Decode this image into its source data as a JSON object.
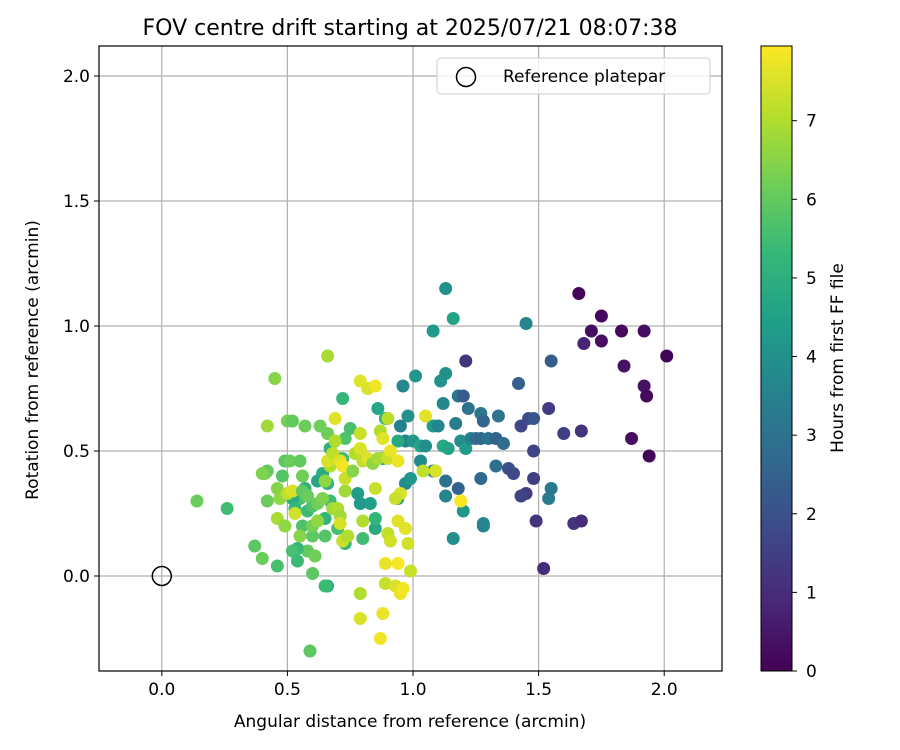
{
  "chart_data": {
    "type": "scatter",
    "title": "FOV centre drift starting at 2025/07/21 08:07:38",
    "xlabel": "Angular distance from reference (arcmin)",
    "ylabel": "Rotation from reference (arcmin)",
    "xlim": [
      -0.25,
      2.23
    ],
    "ylim": [
      -0.38,
      2.12
    ],
    "xticks": [
      "0.0",
      "0.5",
      "1.0",
      "1.5",
      "2.0"
    ],
    "yticks": [
      "0.0",
      "0.5",
      "1.0",
      "1.5",
      "2.0"
    ],
    "grid": true,
    "legend": {
      "position": "top-right",
      "entries": [
        "Reference platepar"
      ]
    },
    "colorbar": {
      "label": "Hours from first FF file",
      "range": [
        0,
        7.95
      ],
      "ticks": [
        "0",
        "1",
        "2",
        "3",
        "4",
        "5",
        "6",
        "7"
      ],
      "colormap": [
        "#440154",
        "#482878",
        "#3e4989",
        "#31688e",
        "#26828e",
        "#1f9e89",
        "#35b779",
        "#6ece58",
        "#b5de2b",
        "#fde725"
      ]
    },
    "reference_point": {
      "x": 0.0,
      "y": 0.0
    },
    "points": [
      {
        "x": 1.66,
        "y": 1.13,
        "c": 0.1
      },
      {
        "x": 1.75,
        "y": 1.04,
        "c": 0.2
      },
      {
        "x": 1.71,
        "y": 0.98,
        "c": 0.3
      },
      {
        "x": 1.83,
        "y": 0.98,
        "c": 0.2
      },
      {
        "x": 1.92,
        "y": 0.98,
        "c": 0.3
      },
      {
        "x": 1.68,
        "y": 0.93,
        "c": 0.8
      },
      {
        "x": 1.75,
        "y": 0.94,
        "c": 0.3
      },
      {
        "x": 2.01,
        "y": 0.88,
        "c": 0.1
      },
      {
        "x": 1.84,
        "y": 0.84,
        "c": 0.4
      },
      {
        "x": 1.92,
        "y": 0.76,
        "c": 0.4
      },
      {
        "x": 1.93,
        "y": 0.72,
        "c": 0.2
      },
      {
        "x": 1.87,
        "y": 0.55,
        "c": 0.3
      },
      {
        "x": 1.94,
        "y": 0.48,
        "c": 0.1
      },
      {
        "x": 1.67,
        "y": 0.58,
        "c": 1.2
      },
      {
        "x": 1.6,
        "y": 0.57,
        "c": 1.5
      },
      {
        "x": 1.64,
        "y": 0.21,
        "c": 1.2
      },
      {
        "x": 1.67,
        "y": 0.22,
        "c": 1.0
      },
      {
        "x": 1.55,
        "y": 0.86,
        "c": 2.3
      },
      {
        "x": 1.54,
        "y": 0.67,
        "c": 1.4
      },
      {
        "x": 1.52,
        "y": 0.03,
        "c": 1.0
      },
      {
        "x": 1.49,
        "y": 0.22,
        "c": 1.2
      },
      {
        "x": 1.48,
        "y": 0.39,
        "c": 1.5
      },
      {
        "x": 1.45,
        "y": 0.33,
        "c": 1.4
      },
      {
        "x": 1.43,
        "y": 0.32,
        "c": 1.6
      },
      {
        "x": 1.48,
        "y": 0.5,
        "c": 1.6
      },
      {
        "x": 1.43,
        "y": 0.6,
        "c": 1.7
      },
      {
        "x": 1.46,
        "y": 0.63,
        "c": 1.9
      },
      {
        "x": 1.48,
        "y": 0.63,
        "c": 2.1
      },
      {
        "x": 1.42,
        "y": 0.77,
        "c": 2.4
      },
      {
        "x": 1.45,
        "y": 1.01,
        "c": 3.6
      },
      {
        "x": 1.54,
        "y": 0.31,
        "c": 3.3
      },
      {
        "x": 1.55,
        "y": 0.35,
        "c": 3.2
      },
      {
        "x": 1.38,
        "y": 0.43,
        "c": 2.0
      },
      {
        "x": 1.4,
        "y": 0.41,
        "c": 1.8
      },
      {
        "x": 1.33,
        "y": 0.44,
        "c": 2.9
      },
      {
        "x": 1.27,
        "y": 0.39,
        "c": 2.7
      },
      {
        "x": 1.28,
        "y": 0.21,
        "c": 3.8
      },
      {
        "x": 1.28,
        "y": 0.2,
        "c": 3.6
      },
      {
        "x": 1.2,
        "y": 0.26,
        "c": 4.2
      },
      {
        "x": 1.18,
        "y": 0.35,
        "c": 2.5
      },
      {
        "x": 1.13,
        "y": 0.32,
        "c": 3.6
      },
      {
        "x": 1.16,
        "y": 0.15,
        "c": 3.9
      },
      {
        "x": 1.13,
        "y": 0.38,
        "c": 3.0
      },
      {
        "x": 1.21,
        "y": 0.86,
        "c": 1.2
      },
      {
        "x": 1.18,
        "y": 0.72,
        "c": 3.2
      },
      {
        "x": 1.2,
        "y": 0.72,
        "c": 2.3
      },
      {
        "x": 1.22,
        "y": 0.67,
        "c": 3.0
      },
      {
        "x": 1.27,
        "y": 0.65,
        "c": 3.2
      },
      {
        "x": 1.28,
        "y": 0.62,
        "c": 2.6
      },
      {
        "x": 1.34,
        "y": 0.64,
        "c": 3.0
      },
      {
        "x": 1.17,
        "y": 0.61,
        "c": 3.3
      },
      {
        "x": 1.12,
        "y": 0.69,
        "c": 3.7
      },
      {
        "x": 1.11,
        "y": 0.78,
        "c": 4.1
      },
      {
        "x": 1.13,
        "y": 0.81,
        "c": 4.0
      },
      {
        "x": 1.16,
        "y": 1.03,
        "c": 4.6
      },
      {
        "x": 1.13,
        "y": 1.15,
        "c": 4.0
      },
      {
        "x": 1.08,
        "y": 0.98,
        "c": 4.3
      },
      {
        "x": 1.08,
        "y": 0.6,
        "c": 4.4
      },
      {
        "x": 1.1,
        "y": 0.6,
        "c": 3.6
      },
      {
        "x": 1.12,
        "y": 0.52,
        "c": 4.8
      },
      {
        "x": 1.14,
        "y": 0.51,
        "c": 4.6
      },
      {
        "x": 1.19,
        "y": 0.54,
        "c": 3.9
      },
      {
        "x": 1.21,
        "y": 0.51,
        "c": 4.3
      },
      {
        "x": 1.23,
        "y": 0.55,
        "c": 3.5
      },
      {
        "x": 1.25,
        "y": 0.55,
        "c": 2.8
      },
      {
        "x": 1.27,
        "y": 0.55,
        "c": 2.7
      },
      {
        "x": 1.3,
        "y": 0.55,
        "c": 3.1
      },
      {
        "x": 1.33,
        "y": 0.55,
        "c": 2.5
      },
      {
        "x": 1.36,
        "y": 0.53,
        "c": 2.8
      },
      {
        "x": 1.01,
        "y": 0.8,
        "c": 4.2
      },
      {
        "x": 0.96,
        "y": 0.76,
        "c": 3.7
      },
      {
        "x": 0.98,
        "y": 0.64,
        "c": 4.0
      },
      {
        "x": 0.95,
        "y": 0.6,
        "c": 3.5
      },
      {
        "x": 0.97,
        "y": 0.54,
        "c": 3.6
      },
      {
        "x": 1.0,
        "y": 0.54,
        "c": 4.2
      },
      {
        "x": 1.03,
        "y": 0.52,
        "c": 4.6
      },
      {
        "x": 1.05,
        "y": 0.52,
        "c": 3.9
      },
      {
        "x": 0.94,
        "y": 0.54,
        "c": 4.8
      },
      {
        "x": 0.86,
        "y": 0.67,
        "c": 4.7
      },
      {
        "x": 0.89,
        "y": 0.63,
        "c": 5.0
      },
      {
        "x": 0.97,
        "y": 0.37,
        "c": 3.8
      },
      {
        "x": 0.99,
        "y": 0.39,
        "c": 4.2
      },
      {
        "x": 1.03,
        "y": 0.46,
        "c": 3.8
      },
      {
        "x": 1.08,
        "y": 0.42,
        "c": 3.6
      },
      {
        "x": 0.94,
        "y": 0.31,
        "c": 4.6
      },
      {
        "x": 0.88,
        "y": 0.47,
        "c": 4.8
      },
      {
        "x": 0.83,
        "y": 0.29,
        "c": 4.5
      },
      {
        "x": 0.78,
        "y": 0.33,
        "c": 4.4
      },
      {
        "x": 0.79,
        "y": 0.29,
        "c": 4.3
      },
      {
        "x": 0.85,
        "y": 0.19,
        "c": 4.8
      },
      {
        "x": 0.85,
        "y": 0.23,
        "c": 5.2
      },
      {
        "x": 0.8,
        "y": 0.15,
        "c": 5.5
      },
      {
        "x": 0.72,
        "y": 0.71,
        "c": 5.3
      },
      {
        "x": 0.75,
        "y": 0.59,
        "c": 5.6
      },
      {
        "x": 0.73,
        "y": 0.55,
        "c": 5.7
      },
      {
        "x": 0.72,
        "y": 0.47,
        "c": 5.5
      },
      {
        "x": 0.7,
        "y": 0.47,
        "c": 5.3
      },
      {
        "x": 0.67,
        "y": 0.51,
        "c": 5.0
      },
      {
        "x": 0.64,
        "y": 0.41,
        "c": 4.9
      },
      {
        "x": 0.62,
        "y": 0.38,
        "c": 4.7
      },
      {
        "x": 0.66,
        "y": 0.37,
        "c": 5.1
      },
      {
        "x": 0.57,
        "y": 0.35,
        "c": 5.0
      },
      {
        "x": 0.55,
        "y": 0.31,
        "c": 5.6
      },
      {
        "x": 0.52,
        "y": 0.31,
        "c": 4.9
      },
      {
        "x": 0.53,
        "y": 0.27,
        "c": 5.3
      },
      {
        "x": 0.58,
        "y": 0.26,
        "c": 5.4
      },
      {
        "x": 0.6,
        "y": 0.28,
        "c": 5.7
      },
      {
        "x": 0.67,
        "y": 0.3,
        "c": 5.4
      },
      {
        "x": 0.65,
        "y": 0.23,
        "c": 5.2
      },
      {
        "x": 0.7,
        "y": 0.19,
        "c": 5.6
      },
      {
        "x": 0.73,
        "y": 0.13,
        "c": 5.2
      },
      {
        "x": 0.65,
        "y": 0.16,
        "c": 5.8
      },
      {
        "x": 0.6,
        "y": 0.16,
        "c": 5.9
      },
      {
        "x": 0.56,
        "y": 0.2,
        "c": 5.7
      },
      {
        "x": 0.58,
        "y": 0.1,
        "c": 6.0
      },
      {
        "x": 0.54,
        "y": 0.11,
        "c": 5.3
      },
      {
        "x": 0.52,
        "y": 0.1,
        "c": 5.6
      },
      {
        "x": 0.54,
        "y": 0.06,
        "c": 5.4
      },
      {
        "x": 0.46,
        "y": 0.04,
        "c": 5.6
      },
      {
        "x": 0.4,
        "y": 0.07,
        "c": 6.1
      },
      {
        "x": 0.37,
        "y": 0.12,
        "c": 5.9
      },
      {
        "x": 0.61,
        "y": 0.08,
        "c": 6.2
      },
      {
        "x": 0.6,
        "y": 0.01,
        "c": 5.9
      },
      {
        "x": 0.66,
        "y": -0.04,
        "c": 5.0
      },
      {
        "x": 0.65,
        "y": -0.04,
        "c": 5.4
      },
      {
        "x": 0.59,
        "y": -0.3,
        "c": 5.9
      },
      {
        "x": 0.14,
        "y": 0.3,
        "c": 6.1
      },
      {
        "x": 0.26,
        "y": 0.27,
        "c": 5.5
      },
      {
        "x": 0.41,
        "y": 0.41,
        "c": 6.3
      },
      {
        "x": 0.42,
        "y": 0.42,
        "c": 6.0
      },
      {
        "x": 0.42,
        "y": 0.3,
        "c": 6.1
      },
      {
        "x": 0.46,
        "y": 0.35,
        "c": 6.5
      },
      {
        "x": 0.47,
        "y": 0.31,
        "c": 6.6
      },
      {
        "x": 0.46,
        "y": 0.23,
        "c": 6.9
      },
      {
        "x": 0.48,
        "y": 0.4,
        "c": 5.8
      },
      {
        "x": 0.49,
        "y": 0.46,
        "c": 5.9
      },
      {
        "x": 0.51,
        "y": 0.46,
        "c": 6.1
      },
      {
        "x": 0.55,
        "y": 0.46,
        "c": 6.0
      },
      {
        "x": 0.56,
        "y": 0.4,
        "c": 6.2
      },
      {
        "x": 0.5,
        "y": 0.62,
        "c": 6.3
      },
      {
        "x": 0.52,
        "y": 0.62,
        "c": 6.0
      },
      {
        "x": 0.57,
        "y": 0.6,
        "c": 6.1
      },
      {
        "x": 0.63,
        "y": 0.6,
        "c": 6.2
      },
      {
        "x": 0.66,
        "y": 0.57,
        "c": 6.2
      },
      {
        "x": 0.45,
        "y": 0.79,
        "c": 6.5
      },
      {
        "x": 0.66,
        "y": 0.88,
        "c": 6.9
      },
      {
        "x": 0.42,
        "y": 0.6,
        "c": 6.8
      },
      {
        "x": 0.4,
        "y": 0.41,
        "c": 6.4
      },
      {
        "x": 0.5,
        "y": 0.33,
        "c": 7.2
      },
      {
        "x": 0.52,
        "y": 0.34,
        "c": 7.5
      },
      {
        "x": 0.53,
        "y": 0.25,
        "c": 7.4
      },
      {
        "x": 0.55,
        "y": 0.16,
        "c": 6.5
      },
      {
        "x": 0.49,
        "y": 0.2,
        "c": 6.6
      },
      {
        "x": 0.6,
        "y": 0.2,
        "c": 6.3
      },
      {
        "x": 0.62,
        "y": 0.22,
        "c": 6.6
      },
      {
        "x": 0.62,
        "y": 0.29,
        "c": 6.2
      },
      {
        "x": 0.64,
        "y": 0.31,
        "c": 6.4
      },
      {
        "x": 0.68,
        "y": 0.27,
        "c": 6.8
      },
      {
        "x": 0.7,
        "y": 0.27,
        "c": 7.0
      },
      {
        "x": 0.65,
        "y": 0.38,
        "c": 6.6
      },
      {
        "x": 0.67,
        "y": 0.44,
        "c": 7.0
      },
      {
        "x": 0.66,
        "y": 0.46,
        "c": 7.5
      },
      {
        "x": 0.68,
        "y": 0.49,
        "c": 7.2
      },
      {
        "x": 0.69,
        "y": 0.54,
        "c": 7.0
      },
      {
        "x": 0.71,
        "y": 0.46,
        "c": 7.6
      },
      {
        "x": 0.72,
        "y": 0.44,
        "c": 7.8
      },
      {
        "x": 0.69,
        "y": 0.63,
        "c": 7.6
      },
      {
        "x": 0.71,
        "y": 0.24,
        "c": 6.8
      },
      {
        "x": 0.71,
        "y": 0.21,
        "c": 7.5
      },
      {
        "x": 0.72,
        "y": 0.14,
        "c": 7.3
      },
      {
        "x": 0.74,
        "y": 0.16,
        "c": 7.0
      },
      {
        "x": 0.73,
        "y": 0.34,
        "c": 6.8
      },
      {
        "x": 0.73,
        "y": 0.39,
        "c": 7.3
      },
      {
        "x": 0.77,
        "y": 0.49,
        "c": 7.0
      },
      {
        "x": 0.76,
        "y": 0.42,
        "c": 6.5
      },
      {
        "x": 0.79,
        "y": 0.5,
        "c": 7.2
      },
      {
        "x": 0.79,
        "y": 0.51,
        "c": 7.5
      },
      {
        "x": 0.8,
        "y": 0.46,
        "c": 7.2
      },
      {
        "x": 0.82,
        "y": 0.47,
        "c": 7.6
      },
      {
        "x": 0.84,
        "y": 0.45,
        "c": 6.6
      },
      {
        "x": 0.86,
        "y": 0.47,
        "c": 6.9
      },
      {
        "x": 0.79,
        "y": 0.57,
        "c": 7.3
      },
      {
        "x": 0.85,
        "y": 0.35,
        "c": 7.3
      },
      {
        "x": 0.87,
        "y": 0.58,
        "c": 7.0
      },
      {
        "x": 0.88,
        "y": 0.55,
        "c": 7.6
      },
      {
        "x": 0.9,
        "y": 0.63,
        "c": 7.1
      },
      {
        "x": 0.9,
        "y": 0.47,
        "c": 7.4
      },
      {
        "x": 0.9,
        "y": 0.48,
        "c": 7.3
      },
      {
        "x": 0.91,
        "y": 0.5,
        "c": 7.7
      },
      {
        "x": 0.94,
        "y": 0.46,
        "c": 7.7
      },
      {
        "x": 0.95,
        "y": 0.33,
        "c": 7.5
      },
      {
        "x": 0.93,
        "y": 0.31,
        "c": 7.3
      },
      {
        "x": 0.79,
        "y": 0.78,
        "c": 7.6
      },
      {
        "x": 0.82,
        "y": 0.75,
        "c": 7.5
      },
      {
        "x": 0.85,
        "y": 0.76,
        "c": 7.8
      },
      {
        "x": 0.8,
        "y": 0.22,
        "c": 7.0
      },
      {
        "x": 0.9,
        "y": 0.17,
        "c": 7.2
      },
      {
        "x": 0.91,
        "y": 0.14,
        "c": 7.4
      },
      {
        "x": 0.94,
        "y": 0.22,
        "c": 7.6
      },
      {
        "x": 0.97,
        "y": 0.19,
        "c": 7.6
      },
      {
        "x": 0.98,
        "y": 0.13,
        "c": 7.4
      },
      {
        "x": 0.89,
        "y": 0.05,
        "c": 7.7
      },
      {
        "x": 0.94,
        "y": 0.05,
        "c": 7.9
      },
      {
        "x": 0.99,
        "y": 0.02,
        "c": 7.3
      },
      {
        "x": 0.89,
        "y": -0.03,
        "c": 7.3
      },
      {
        "x": 0.93,
        "y": -0.04,
        "c": 7.5
      },
      {
        "x": 0.95,
        "y": -0.07,
        "c": 7.7
      },
      {
        "x": 0.96,
        "y": -0.05,
        "c": 7.8
      },
      {
        "x": 0.79,
        "y": -0.07,
        "c": 7.0
      },
      {
        "x": 0.79,
        "y": -0.17,
        "c": 7.5
      },
      {
        "x": 0.88,
        "y": -0.15,
        "c": 7.7
      },
      {
        "x": 0.87,
        "y": -0.25,
        "c": 7.8
      },
      {
        "x": 1.04,
        "y": 0.42,
        "c": 7.2
      },
      {
        "x": 1.05,
        "y": 0.64,
        "c": 7.6
      },
      {
        "x": 1.09,
        "y": 0.42,
        "c": 7.5
      },
      {
        "x": 1.19,
        "y": 0.3,
        "c": 7.9
      },
      {
        "x": 0.56,
        "y": 0.34,
        "c": 5.9
      },
      {
        "x": 0.58,
        "y": 0.32,
        "c": 6.1
      }
    ]
  }
}
